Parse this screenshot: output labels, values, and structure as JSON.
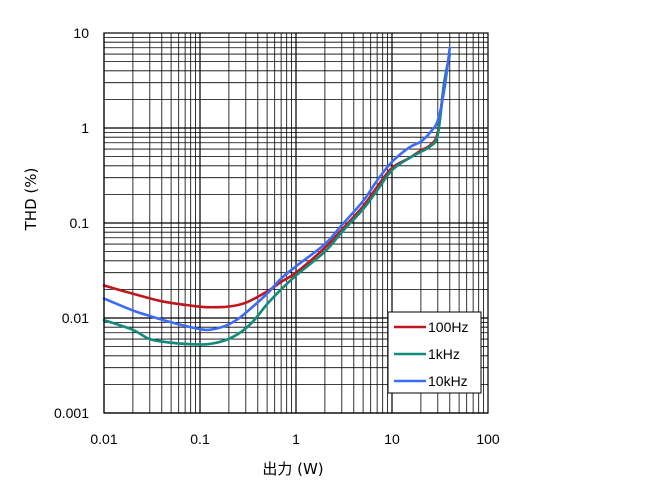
{
  "chart_data": {
    "type": "line",
    "xlabel": "出力 (W)",
    "ylabel": "THD (%)",
    "x_scale": "log",
    "y_scale": "log",
    "xlim": [
      0.01,
      100
    ],
    "ylim": [
      0.001,
      10
    ],
    "x_ticks": [
      "0.01",
      "0.1",
      "1",
      "10",
      "100"
    ],
    "y_ticks": [
      "10",
      "1",
      "0.1",
      "0.01",
      "0.001"
    ],
    "grid": true,
    "legend_position": "bottom-right",
    "series": [
      {
        "name": "100Hz",
        "color": "#c0171d",
        "x": [
          0.01,
          0.02,
          0.04,
          0.08,
          0.12,
          0.2,
          0.3,
          0.5,
          0.7,
          1,
          2,
          3,
          5,
          7,
          10,
          15,
          20,
          25,
          30,
          35,
          40
        ],
        "y": [
          0.022,
          0.018,
          0.015,
          0.0135,
          0.013,
          0.0132,
          0.0145,
          0.019,
          0.024,
          0.03,
          0.055,
          0.085,
          0.15,
          0.24,
          0.38,
          0.48,
          0.58,
          0.66,
          0.9,
          3.0,
          6.0
        ]
      },
      {
        "name": "1kHz",
        "color": "#138a7c",
        "x": [
          0.01,
          0.02,
          0.03,
          0.05,
          0.08,
          0.12,
          0.18,
          0.25,
          0.35,
          0.5,
          0.7,
          1,
          2,
          3,
          5,
          7,
          10,
          15,
          20,
          25,
          30,
          35,
          40
        ],
        "y": [
          0.0095,
          0.0075,
          0.006,
          0.0055,
          0.0053,
          0.0053,
          0.0058,
          0.0068,
          0.009,
          0.014,
          0.02,
          0.028,
          0.05,
          0.08,
          0.14,
          0.22,
          0.36,
          0.48,
          0.56,
          0.64,
          0.85,
          3.0,
          6.0
        ]
      },
      {
        "name": "10kHz",
        "color": "#3b6cf6",
        "x": [
          0.01,
          0.02,
          0.03,
          0.05,
          0.08,
          0.12,
          0.18,
          0.25,
          0.35,
          0.5,
          0.7,
          1,
          2,
          3,
          5,
          7,
          10,
          15,
          20,
          25,
          30,
          35,
          40
        ],
        "y": [
          0.016,
          0.012,
          0.0105,
          0.009,
          0.008,
          0.0075,
          0.0082,
          0.0098,
          0.013,
          0.018,
          0.026,
          0.035,
          0.06,
          0.095,
          0.17,
          0.28,
          0.44,
          0.62,
          0.72,
          0.9,
          1.2,
          2.5,
          7.0
        ]
      }
    ]
  }
}
